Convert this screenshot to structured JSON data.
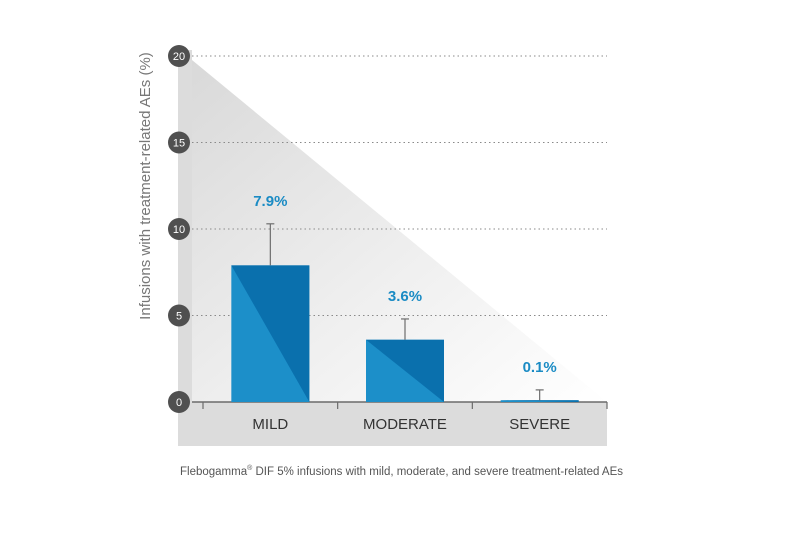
{
  "chart_data": {
    "type": "bar",
    "categories": [
      "MILD",
      "MODERATE",
      "SEVERE"
    ],
    "values": [
      7.9,
      3.6,
      0.1
    ],
    "error_upper": [
      10.3,
      4.8,
      0.7
    ],
    "value_labels": [
      "7.9%",
      "3.6%",
      "0.1%"
    ],
    "ylabel": "Infusions with treatment-related AEs (%)",
    "ylim": [
      0,
      20
    ],
    "yticks": [
      0,
      5,
      10,
      15,
      20
    ],
    "grid": true,
    "colors": {
      "bar": "#1c8fc9",
      "bar_dark": "#0a70ad",
      "value_label": "#1a8bc4",
      "axis_box": "#dedede",
      "tick_circle": "#505050"
    }
  },
  "caption": {
    "brand": "Flebogamma",
    "reg_mark": "®",
    "text": " DIF 5% infusions with mild, moderate, and severe treatment-related AEs"
  }
}
